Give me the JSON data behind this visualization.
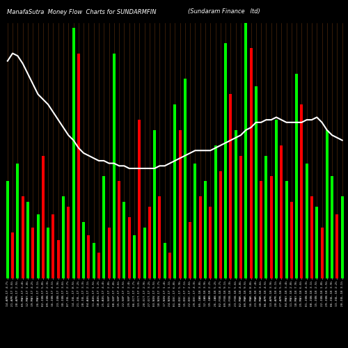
{
  "title_left": "ManafaSutra  Money Flow  Charts for SUNDARMFIN",
  "title_right": "(Sundaram Finance   ltd)",
  "background_color": "#000000",
  "bar_color_positive": "#00ff00",
  "bar_color_negative": "#ff0000",
  "grid_color": "#8B4513",
  "line_color": "#ffffff",
  "text_color": "#ffffff",
  "n_bars": 67,
  "bar_colors": [
    "G",
    "R",
    "G",
    "R",
    "G",
    "R",
    "G",
    "R",
    "G",
    "R",
    "R",
    "G",
    "R",
    "G",
    "R",
    "G",
    "R",
    "G",
    "R",
    "G",
    "R",
    "G",
    "R",
    "G",
    "R",
    "G",
    "R",
    "G",
    "R",
    "G",
    "R",
    "G",
    "R",
    "G",
    "R",
    "G",
    "R",
    "G",
    "R",
    "G",
    "R",
    "G",
    "R",
    "G",
    "R",
    "G",
    "R",
    "G",
    "R",
    "G",
    "R",
    "G",
    "R",
    "G",
    "R",
    "G",
    "R",
    "G",
    "R",
    "G",
    "R",
    "G",
    "R",
    "G",
    "G",
    "R",
    "G"
  ],
  "bar_heights": [
    38,
    18,
    45,
    32,
    30,
    20,
    25,
    48,
    20,
    25,
    15,
    32,
    28,
    98,
    88,
    22,
    17,
    14,
    10,
    40,
    20,
    88,
    38,
    30,
    24,
    17,
    62,
    20,
    28,
    58,
    32,
    14,
    10,
    68,
    58,
    78,
    22,
    45,
    32,
    38,
    28,
    52,
    42,
    92,
    72,
    58,
    48,
    100,
    90,
    75,
    38,
    48,
    40,
    62,
    52,
    38,
    30,
    80,
    68,
    45,
    32,
    28,
    20,
    58,
    40,
    25,
    32
  ],
  "ma_values": [
    85,
    88,
    87,
    84,
    80,
    76,
    72,
    70,
    68,
    65,
    62,
    59,
    56,
    54,
    51,
    49,
    48,
    47,
    46,
    46,
    45,
    45,
    44,
    44,
    43,
    43,
    43,
    43,
    43,
    43,
    44,
    44,
    45,
    46,
    47,
    48,
    49,
    50,
    50,
    50,
    50,
    51,
    52,
    53,
    54,
    55,
    56,
    58,
    59,
    61,
    61,
    62,
    62,
    63,
    62,
    61,
    61,
    61,
    61,
    62,
    62,
    63,
    61,
    58,
    56,
    55,
    54
  ],
  "labels": [
    "14-APR-17 4.7%",
    "21-APR-17 5.6%",
    "28-APR-17 2.5%",
    "05-MAY-17 3.4%",
    "12-MAY-17 1.8%",
    "19-MAY-17 4.2%",
    "26-MAY-17 3.1%",
    "02-JUN-17 5.8%",
    "09-JUN-17 2.3%",
    "16-JUN-17 4.1%",
    "23-JUN-17 1.9%",
    "30-JUN-17 3.6%",
    "07-JUL-17 2.7%",
    "14-JUL-17 8.5%",
    "21-JUL-17 7.2%",
    "28-JUL-17 3.3%",
    "04-AUG-17 2.1%",
    "11-AUG-17 1.5%",
    "18-AUG-17 1.2%",
    "25-AUG-17 4.4%",
    "01-SEP-17 2.8%",
    "08-SEP-17 7.8%",
    "15-SEP-17 4.6%",
    "22-SEP-17 3.5%",
    "29-SEP-17 2.4%",
    "06-OCT-17 1.7%",
    "13-OCT-17 6.3%",
    "20-OCT-17 2.9%",
    "27-OCT-17 3.2%",
    "03-NOV-17 5.5%",
    "10-NOV-17 3.7%",
    "17-NOV-17 1.4%",
    "24-NOV-17 1.1%",
    "01-DEC-17 6.8%",
    "08-DEC-17 5.9%",
    "15-DEC-17 7.1%",
    "22-DEC-17 2.6%",
    "29-DEC-17 4.3%",
    "05-JAN-18 3.8%",
    "12-JAN-18 3.9%",
    "19-JAN-18 2.2%",
    "26-JAN-18 5.2%",
    "02-FEB-18 4.7%",
    "09-FEB-18 9.1%",
    "16-FEB-18 7.3%",
    "23-FEB-18 5.6%",
    "02-MAR-18 4.8%",
    "09-MAR-18 9.5%",
    "16-MAR-18 8.8%",
    "23-MAR-18 7.4%",
    "30-MAR-18 3.6%",
    "06-APR-18 4.5%",
    "13-APR-18 3.9%",
    "20-APR-18 6.1%",
    "27-APR-18 5.3%",
    "04-MAY-18 3.4%",
    "11-MAY-18 2.8%",
    "18-MAY-18 7.9%",
    "25-MAY-18 6.6%",
    "01-JUN-18 4.3%",
    "08-JUN-18 3.1%",
    "15-JUN-18 2.5%",
    "22-JUN-18 1.8%",
    "29-JUN-18 5.5%",
    "06-JUL-18 3.9%",
    "13-JUL-18 2.2%",
    "20-JUL-18 3.1%"
  ]
}
